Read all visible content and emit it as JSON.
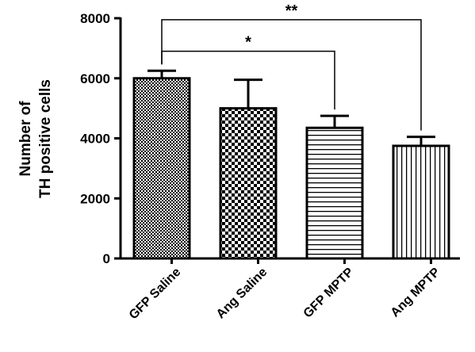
{
  "chart_data": {
    "type": "bar",
    "ylabel": [
      "Number of",
      "TH positive cells"
    ],
    "ylim": [
      0,
      8000
    ],
    "yticks": [
      0,
      2000,
      4000,
      6000,
      8000
    ],
    "categories": [
      "GFP Saline",
      "Ang Saline",
      "GFP MPTP",
      "Ang MPTP"
    ],
    "values": [
      6000,
      5000,
      4350,
      3750
    ],
    "errors": [
      250,
      950,
      400,
      300
    ],
    "patterns": [
      "fine-checker",
      "coarse-checker",
      "horizontal-lines",
      "vertical-lines"
    ],
    "significance": [
      {
        "from": 0,
        "to": 2,
        "label": "*",
        "level": 6900
      },
      {
        "from": 0,
        "to": 3,
        "label": "**",
        "level": 7950
      }
    ],
    "colors": {
      "bar_stroke": "#000000",
      "pattern": "#000000",
      "background": "#ffffff"
    }
  }
}
